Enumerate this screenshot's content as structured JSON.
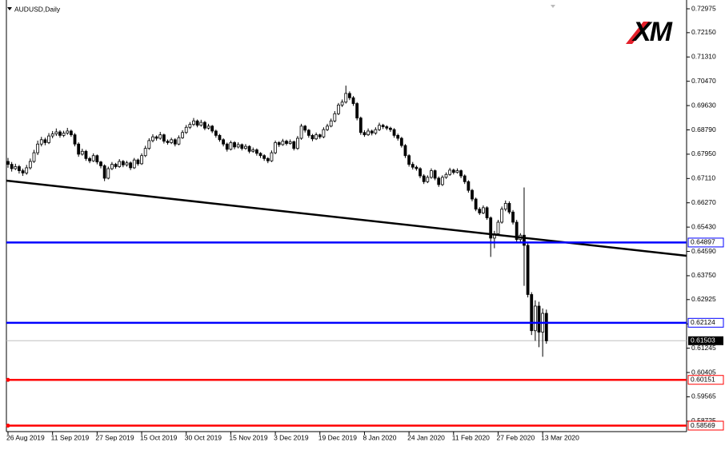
{
  "chart_data": {
    "type": "candlestick",
    "title": "AUDUSD,Daily",
    "logo": "XM",
    "ylim": [
      0.58362,
      0.73279
    ],
    "yticks": [
      0.72975,
      {
        "value": 0.7215,
        "label": "0.72150"
      },
      {
        "value": 0.7131,
        "label": "0.71310"
      },
      {
        "value": 0.7047,
        "label": "0.70470"
      },
      {
        "value": 0.6963,
        "label": "0.69630"
      },
      {
        "value": 0.6879,
        "label": "0.68790"
      },
      {
        "value": 0.6795,
        "label": "0.67950"
      },
      {
        "value": 0.6711,
        "label": "0.67110"
      },
      {
        "value": 0.6627,
        "label": "0.66270"
      },
      {
        "value": 0.6543,
        "label": "0.65430"
      },
      {
        "value": 0.6459,
        "label": "0.64590"
      },
      {
        "value": 0.6375,
        "label": "0.63750"
      },
      0.62925,
      0.62085,
      0.61245,
      0.60405,
      0.59565,
      0.58725
    ],
    "categories": [
      "26 Aug 2019",
      null,
      null,
      null,
      null,
      null,
      null,
      null,
      null,
      null,
      null,
      null,
      "11 Sep 2019",
      null,
      null,
      null,
      null,
      null,
      null,
      null,
      null,
      null,
      null,
      null,
      "27 Sep 2019",
      null,
      null,
      null,
      null,
      null,
      null,
      null,
      null,
      null,
      null,
      null,
      "15 Oct 2019",
      null,
      null,
      null,
      null,
      null,
      null,
      null,
      null,
      null,
      null,
      null,
      "30 Oct 2019",
      null,
      null,
      null,
      null,
      null,
      null,
      null,
      null,
      null,
      null,
      null,
      "15 Nov 2019",
      null,
      null,
      null,
      null,
      null,
      null,
      null,
      null,
      null,
      null,
      null,
      "3 Dec 2019",
      null,
      null,
      null,
      null,
      null,
      null,
      null,
      null,
      null,
      null,
      null,
      "19 Dec 2019",
      null,
      null,
      null,
      null,
      null,
      null,
      null,
      null,
      null,
      null,
      null,
      "8 Jan 2020",
      null,
      null,
      null,
      null,
      null,
      null,
      null,
      null,
      null,
      null,
      null,
      "24 Jan 2020",
      null,
      null,
      null,
      null,
      null,
      null,
      null,
      null,
      null,
      null,
      null,
      "11 Feb 2020",
      null,
      null,
      null,
      null,
      null,
      null,
      null,
      null,
      null,
      null,
      null,
      "27 Feb 2020",
      null,
      null,
      null,
      null,
      null,
      null,
      null,
      null,
      null,
      null,
      null,
      "13 Mar 2020",
      null
    ],
    "ohlc": [
      [
        0.677,
        0.6782,
        0.6748,
        0.676
      ],
      [
        0.676,
        0.6768,
        0.6735,
        0.6745
      ],
      [
        0.6745,
        0.6762,
        0.674,
        0.6752
      ],
      [
        0.6752,
        0.6758,
        0.6728,
        0.6738
      ],
      [
        0.6738,
        0.6745,
        0.672,
        0.673
      ],
      [
        0.673,
        0.6758,
        0.6724,
        0.6748
      ],
      [
        0.6748,
        0.678,
        0.6742,
        0.677
      ],
      [
        0.677,
        0.681,
        0.6765,
        0.68
      ],
      [
        0.68,
        0.6842,
        0.6792,
        0.683
      ],
      [
        0.683,
        0.6855,
        0.6822,
        0.6845
      ],
      [
        0.6845,
        0.6852,
        0.6826,
        0.6835
      ],
      [
        0.6835,
        0.6868,
        0.683,
        0.6858
      ],
      [
        0.6858,
        0.6875,
        0.685,
        0.6865
      ],
      [
        0.6865,
        0.6884,
        0.6858,
        0.6872
      ],
      [
        0.6872,
        0.6878,
        0.6852,
        0.686
      ],
      [
        0.686,
        0.6876,
        0.6854,
        0.6868
      ],
      [
        0.6868,
        0.6886,
        0.6862,
        0.6875
      ],
      [
        0.6875,
        0.688,
        0.6855,
        0.6862
      ],
      [
        0.6862,
        0.6868,
        0.6822,
        0.683
      ],
      [
        0.683,
        0.6836,
        0.6786,
        0.6795
      ],
      [
        0.6795,
        0.6814,
        0.679,
        0.6805
      ],
      [
        0.6805,
        0.681,
        0.6772,
        0.678
      ],
      [
        0.678,
        0.6786,
        0.6764,
        0.6772
      ],
      [
        0.6772,
        0.6798,
        0.6768,
        0.679
      ],
      [
        0.679,
        0.6794,
        0.676,
        0.6768
      ],
      [
        0.6768,
        0.6772,
        0.6746,
        0.6755
      ],
      [
        0.6755,
        0.676,
        0.6702,
        0.6712
      ],
      [
        0.6712,
        0.6752,
        0.6708,
        0.6745
      ],
      [
        0.6745,
        0.6768,
        0.674,
        0.676
      ],
      [
        0.676,
        0.6765,
        0.6745,
        0.6752
      ],
      [
        0.6752,
        0.6778,
        0.6748,
        0.677
      ],
      [
        0.677,
        0.6775,
        0.675,
        0.6758
      ],
      [
        0.6758,
        0.6772,
        0.6752,
        0.6765
      ],
      [
        0.6765,
        0.677,
        0.674,
        0.6748
      ],
      [
        0.6748,
        0.6782,
        0.6744,
        0.6775
      ],
      [
        0.6775,
        0.678,
        0.6755,
        0.6762
      ],
      [
        0.6762,
        0.6798,
        0.6758,
        0.679
      ],
      [
        0.679,
        0.6824,
        0.6785,
        0.6815
      ],
      [
        0.6815,
        0.685,
        0.681,
        0.6842
      ],
      [
        0.6842,
        0.6864,
        0.6836,
        0.6855
      ],
      [
        0.6855,
        0.686,
        0.6842,
        0.685
      ],
      [
        0.685,
        0.6872,
        0.6845,
        0.6862
      ],
      [
        0.6862,
        0.6866,
        0.6832,
        0.684
      ],
      [
        0.684,
        0.6846,
        0.6828,
        0.6835
      ],
      [
        0.6835,
        0.6852,
        0.683,
        0.6845
      ],
      [
        0.6845,
        0.685,
        0.6822,
        0.683
      ],
      [
        0.683,
        0.686,
        0.6826,
        0.6852
      ],
      [
        0.6852,
        0.6878,
        0.6848,
        0.687
      ],
      [
        0.687,
        0.6896,
        0.6865,
        0.6888
      ],
      [
        0.6888,
        0.6906,
        0.6882,
        0.6898
      ],
      [
        0.6898,
        0.692,
        0.6892,
        0.691
      ],
      [
        0.691,
        0.6915,
        0.6888,
        0.6895
      ],
      [
        0.6895,
        0.6914,
        0.689,
        0.6905
      ],
      [
        0.6905,
        0.691,
        0.6878,
        0.6885
      ],
      [
        0.6885,
        0.69,
        0.688,
        0.6892
      ],
      [
        0.6892,
        0.6896,
        0.6868,
        0.6875
      ],
      [
        0.6875,
        0.688,
        0.6852,
        0.686
      ],
      [
        0.686,
        0.6865,
        0.6838,
        0.6845
      ],
      [
        0.6845,
        0.685,
        0.6822,
        0.683
      ],
      [
        0.683,
        0.6835,
        0.6804,
        0.6812
      ],
      [
        0.6812,
        0.6842,
        0.6808,
        0.6835
      ],
      [
        0.6835,
        0.684,
        0.6812,
        0.682
      ],
      [
        0.682,
        0.6836,
        0.6815,
        0.6828
      ],
      [
        0.6828,
        0.6832,
        0.6808,
        0.6815
      ],
      [
        0.6815,
        0.683,
        0.681,
        0.6822
      ],
      [
        0.6822,
        0.6826,
        0.6798,
        0.6805
      ],
      [
        0.6805,
        0.6818,
        0.68,
        0.681
      ],
      [
        0.681,
        0.6815,
        0.679,
        0.6798
      ],
      [
        0.6798,
        0.6802,
        0.6782,
        0.679
      ],
      [
        0.679,
        0.6795,
        0.6772,
        0.678
      ],
      [
        0.678,
        0.6785,
        0.6764,
        0.6772
      ],
      [
        0.6772,
        0.6808,
        0.6768,
        0.68
      ],
      [
        0.68,
        0.6842,
        0.6795,
        0.6835
      ],
      [
        0.6835,
        0.684,
        0.682,
        0.6828
      ],
      [
        0.6828,
        0.6848,
        0.6824,
        0.684
      ],
      [
        0.684,
        0.6845,
        0.6825,
        0.6832
      ],
      [
        0.6832,
        0.6846,
        0.6828,
        0.6838
      ],
      [
        0.6838,
        0.6842,
        0.6808,
        0.6815
      ],
      [
        0.6815,
        0.6858,
        0.681,
        0.685
      ],
      [
        0.685,
        0.69,
        0.6845,
        0.6892
      ],
      [
        0.6892,
        0.6896,
        0.687,
        0.6878
      ],
      [
        0.6878,
        0.6882,
        0.6852,
        0.686
      ],
      [
        0.686,
        0.6865,
        0.684,
        0.6848
      ],
      [
        0.6848,
        0.687,
        0.6844,
        0.6862
      ],
      [
        0.6862,
        0.6866,
        0.6848,
        0.6855
      ],
      [
        0.6855,
        0.6888,
        0.685,
        0.688
      ],
      [
        0.688,
        0.69,
        0.6875,
        0.6892
      ],
      [
        0.6892,
        0.6918,
        0.6888,
        0.691
      ],
      [
        0.691,
        0.6944,
        0.6905,
        0.6935
      ],
      [
        0.6935,
        0.6972,
        0.693,
        0.6965
      ],
      [
        0.6965,
        0.6984,
        0.6958,
        0.6975
      ],
      [
        0.6975,
        0.7032,
        0.697,
        0.7005
      ],
      [
        0.7005,
        0.7012,
        0.6982,
        0.699
      ],
      [
        0.699,
        0.6996,
        0.6962,
        0.697
      ],
      [
        0.697,
        0.6975,
        0.6912,
        0.692
      ],
      [
        0.692,
        0.6925,
        0.6862,
        0.687
      ],
      [
        0.687,
        0.6878,
        0.6855,
        0.6862
      ],
      [
        0.6862,
        0.6884,
        0.6858,
        0.6875
      ],
      [
        0.6875,
        0.688,
        0.686,
        0.6868
      ],
      [
        0.6868,
        0.6888,
        0.6862,
        0.688
      ],
      [
        0.688,
        0.6904,
        0.6875,
        0.6895
      ],
      [
        0.6895,
        0.69,
        0.6882,
        0.689
      ],
      [
        0.689,
        0.6895,
        0.6878,
        0.6885
      ],
      [
        0.6885,
        0.689,
        0.6872,
        0.688
      ],
      [
        0.688,
        0.6885,
        0.6852,
        0.686
      ],
      [
        0.686,
        0.6866,
        0.6842,
        0.685
      ],
      [
        0.685,
        0.6855,
        0.6818,
        0.6825
      ],
      [
        0.6825,
        0.683,
        0.6782,
        0.679
      ],
      [
        0.679,
        0.6795,
        0.6752,
        0.676
      ],
      [
        0.676,
        0.6768,
        0.6742,
        0.675
      ],
      [
        0.675,
        0.6756,
        0.6738,
        0.6745
      ],
      [
        0.6745,
        0.675,
        0.6712,
        0.672
      ],
      [
        0.672,
        0.6726,
        0.6692,
        0.67
      ],
      [
        0.67,
        0.6722,
        0.6695,
        0.6715
      ],
      [
        0.6715,
        0.6746,
        0.671,
        0.6738
      ],
      [
        0.6738,
        0.6742,
        0.6705,
        0.6712
      ],
      [
        0.6712,
        0.6718,
        0.6682,
        0.669
      ],
      [
        0.669,
        0.6722,
        0.6685,
        0.6715
      ],
      [
        0.6715,
        0.6732,
        0.671,
        0.6725
      ],
      [
        0.6725,
        0.6748,
        0.672,
        0.674
      ],
      [
        0.674,
        0.6745,
        0.6725,
        0.6732
      ],
      [
        0.6732,
        0.6746,
        0.6728,
        0.6738
      ],
      [
        0.6738,
        0.6742,
        0.6712,
        0.672
      ],
      [
        0.672,
        0.6725,
        0.6692,
        0.67
      ],
      [
        0.67,
        0.6705,
        0.6662,
        0.667
      ],
      [
        0.667,
        0.6675,
        0.6632,
        0.664
      ],
      [
        0.664,
        0.6645,
        0.6598,
        0.6605
      ],
      [
        0.6605,
        0.6612,
        0.6585,
        0.6592
      ],
      [
        0.6592,
        0.6618,
        0.6588,
        0.661
      ],
      [
        0.661,
        0.6615,
        0.6568,
        0.6575
      ],
      [
        0.6575,
        0.658,
        0.644,
        0.6505
      ],
      [
        0.6505,
        0.653,
        0.647,
        0.652
      ],
      [
        0.652,
        0.6568,
        0.6515,
        0.656
      ],
      [
        0.656,
        0.6614,
        0.6555,
        0.6605
      ],
      [
        0.6605,
        0.6635,
        0.6598,
        0.6625
      ],
      [
        0.6625,
        0.6632,
        0.6588,
        0.6595
      ],
      [
        0.6595,
        0.6602,
        0.6552,
        0.656
      ],
      [
        0.656,
        0.6568,
        0.6492,
        0.65
      ],
      [
        0.65,
        0.6522,
        0.649,
        0.6515
      ],
      [
        0.6515,
        0.668,
        0.634,
        0.648
      ],
      [
        0.648,
        0.6488,
        0.63,
        0.631
      ],
      [
        0.631,
        0.6318,
        0.617,
        0.6185
      ],
      [
        0.6185,
        0.629,
        0.615,
        0.627
      ],
      [
        0.627,
        0.6285,
        0.6128,
        0.618
      ],
      [
        0.618,
        0.6262,
        0.6095,
        0.6245
      ],
      [
        0.6245,
        0.6258,
        0.614,
        0.615
      ]
    ],
    "trendline": {
      "start": 0.67036,
      "end": 0.64439,
      "color": "#000000"
    },
    "levels": [
      {
        "value": 0.64897,
        "color": "#0000ff"
      },
      {
        "value": 0.62124,
        "color": "#0000ff"
      },
      {
        "value": 0.60151,
        "color": "#ff0000"
      },
      {
        "value": 0.58569,
        "color": "#ff0000"
      }
    ],
    "current_price": 0.61503
  }
}
